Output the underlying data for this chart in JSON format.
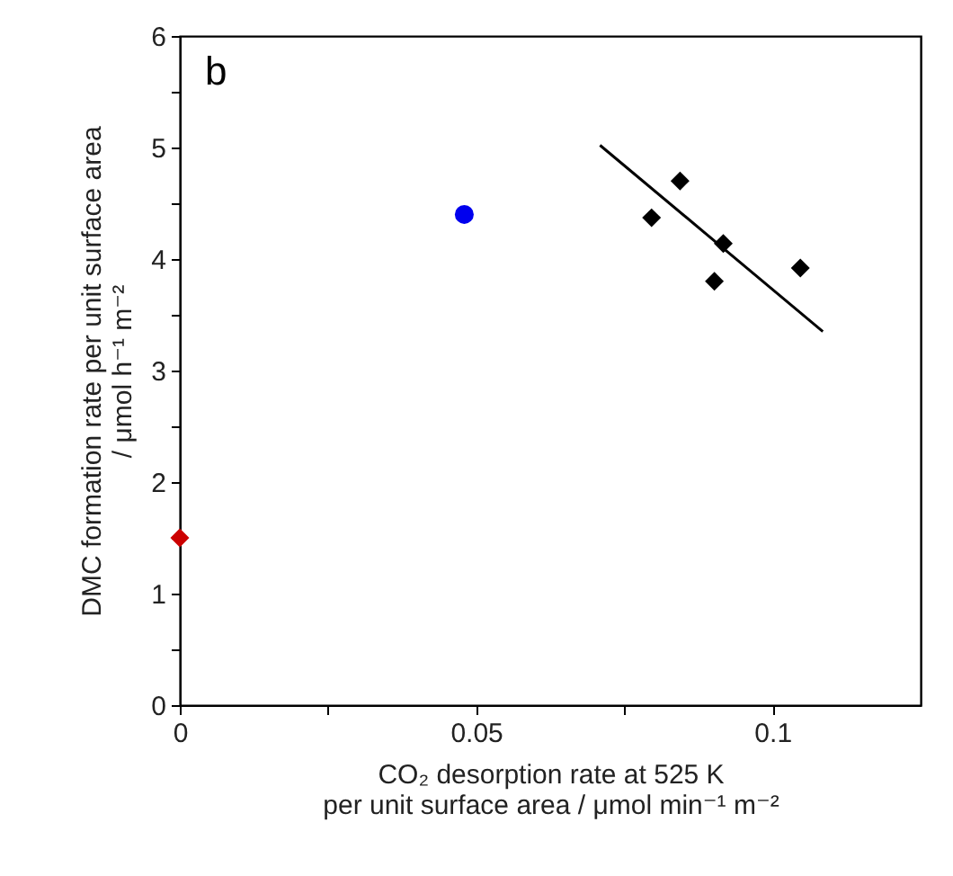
{
  "chart_data": {
    "type": "scatter",
    "xlabel": "CO₂ desorption rate at 525 K\nper unit surface area / μmol min⁻¹ m⁻²",
    "ylabel": "DMC formation rate per unit surface area\n/ μmol h⁻¹ m⁻²",
    "annotations": [
      "b"
    ],
    "series": [
      {
        "color": "#cc0000",
        "marker": "diamond",
        "x": [
          0
        ],
        "values": [
          1.5
        ]
      },
      {
        "color": "#0000ee",
        "marker": "circle",
        "x": [
          0.048
        ],
        "values": [
          4.4
        ]
      },
      {
        "color": "#000000",
        "marker": "diamond",
        "x": [
          0.0796,
          0.0844,
          0.0917,
          0.0902,
          0.1047
        ],
        "values": [
          4.37,
          4.7,
          4.14,
          3.8,
          3.92
        ]
      },
      {
        "type": "line",
        "color": "#000000",
        "x": [
          0.0709,
          0.1085
        ],
        "values": [
          5.02,
          3.35
        ]
      }
    ],
    "xlim": [
      0,
      0.125
    ],
    "xticks": [
      0,
      {
        "value": 0.025,
        "label": null
      },
      0.05,
      {
        "value": 0.075,
        "label": null
      },
      0.1
    ],
    "ylim": [
      0,
      6
    ],
    "yticks": [
      0,
      {
        "value": 0.5,
        "label": null
      },
      1,
      {
        "value": 1.5,
        "label": null
      },
      2,
      {
        "value": 2.5,
        "label": null
      },
      3,
      {
        "value": 3.5,
        "label": null
      },
      4,
      {
        "value": 4.5,
        "label": null
      },
      5,
      {
        "value": 5.5,
        "label": null
      },
      6
    ],
    "grid": false
  }
}
